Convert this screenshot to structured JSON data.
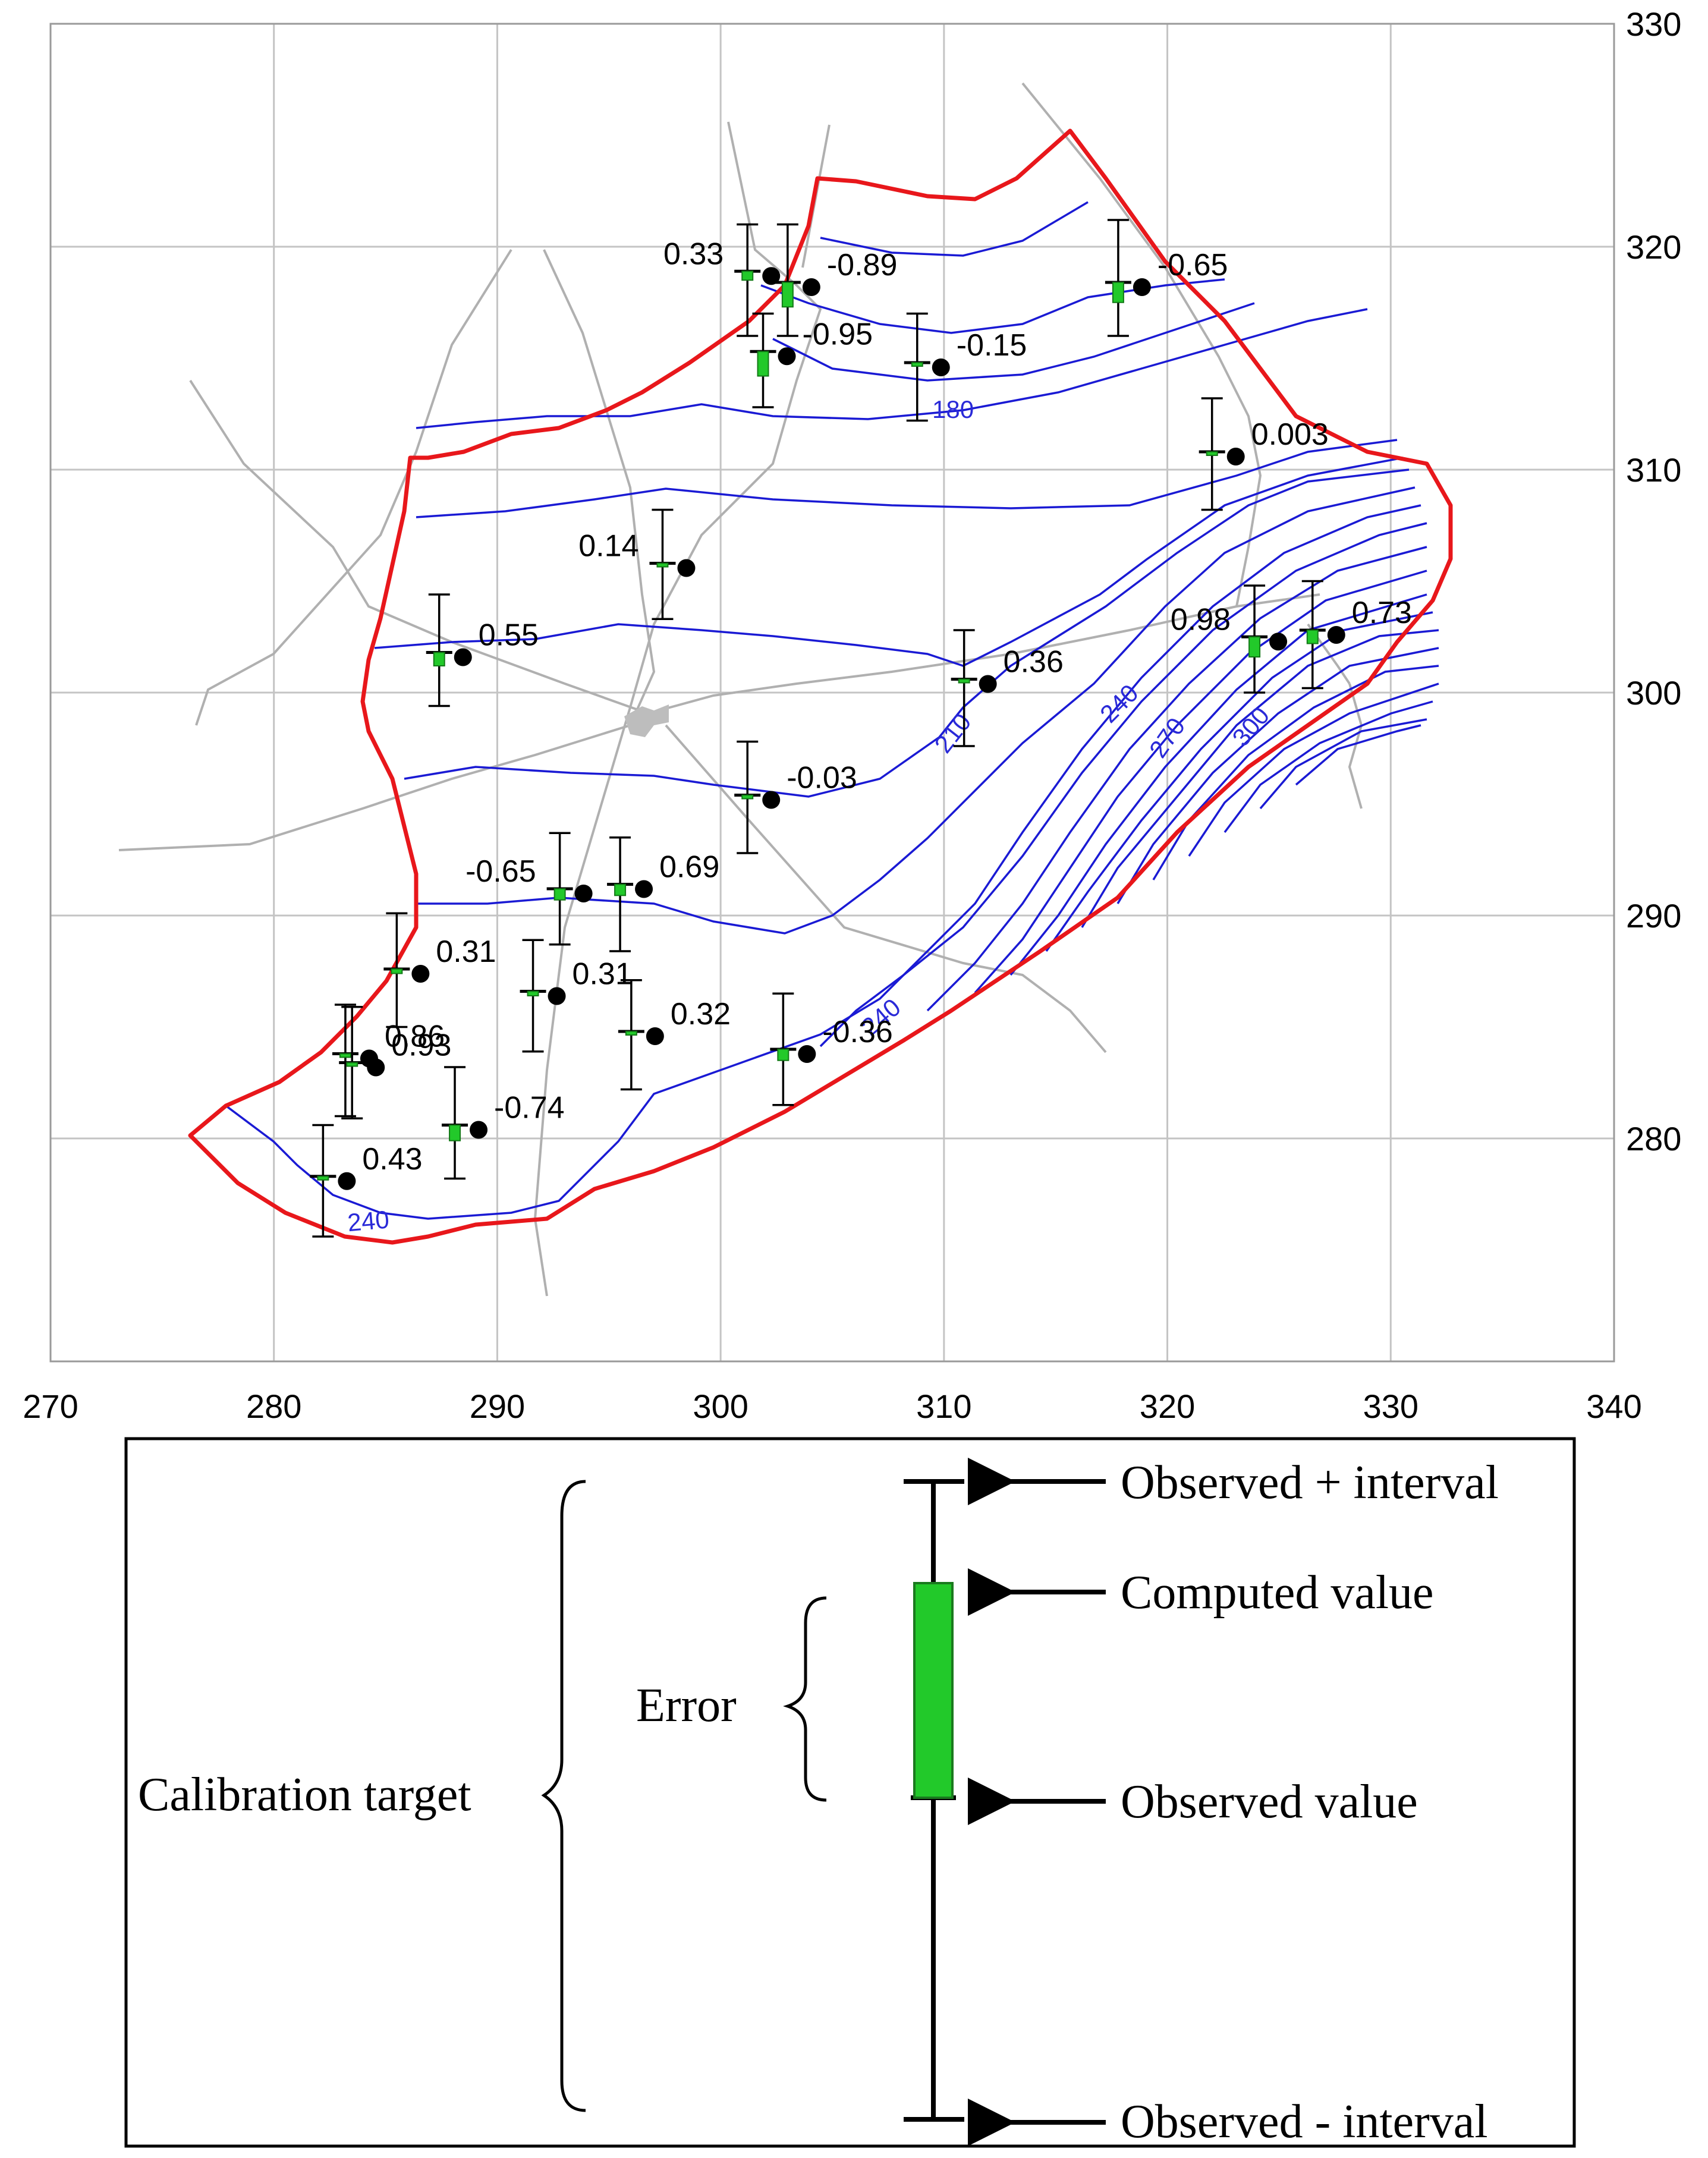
{
  "map": {
    "x_axis": {
      "ticks": [
        "270",
        "280",
        "290",
        "300",
        "310",
        "320",
        "330",
        "340"
      ]
    },
    "y_axis": {
      "ticks": [
        "280",
        "290",
        "300",
        "310",
        "320",
        "330"
      ]
    },
    "contour_labels": [
      "180",
      "210",
      "240",
      "270",
      "300",
      "240",
      "240"
    ],
    "targets": [
      {
        "x": 301.2,
        "y": 318.9,
        "top": 321.0,
        "bot": 316.0,
        "comp": 318.5,
        "label": "0.33",
        "lx": -1
      },
      {
        "x": 303.0,
        "y": 318.4,
        "top": 321.0,
        "bot": 316.0,
        "comp": 317.3,
        "label": "-0.89",
        "lx": 1
      },
      {
        "x": 301.9,
        "y": 315.3,
        "top": 317.0,
        "bot": 312.8,
        "comp": 314.2,
        "label": "-0.95",
        "lx": 1
      },
      {
        "x": 308.8,
        "y": 314.8,
        "top": 317.0,
        "bot": 312.2,
        "comp": 314.8,
        "label": "-0.15",
        "lx": 1
      },
      {
        "x": 317.8,
        "y": 318.4,
        "top": 321.2,
        "bot": 316.0,
        "comp": 317.5,
        "label": "-0.65",
        "lx": 1
      },
      {
        "x": 322.0,
        "y": 310.8,
        "top": 313.2,
        "bot": 308.2,
        "comp": 310.8,
        "label": "0.003",
        "lx": 1
      },
      {
        "x": 297.4,
        "y": 305.8,
        "top": 308.2,
        "bot": 303.3,
        "comp": 305.8,
        "label": "0.14",
        "lx": -1
      },
      {
        "x": 287.4,
        "y": 301.8,
        "top": 304.4,
        "bot": 299.4,
        "comp": 301.2,
        "label": "0.55",
        "lx": 1
      },
      {
        "x": 310.9,
        "y": 300.6,
        "top": 302.8,
        "bot": 297.6,
        "comp": 300.6,
        "label": "0.36",
        "lx": 1
      },
      {
        "x": 323.9,
        "y": 302.5,
        "top": 304.8,
        "bot": 300.0,
        "comp": 301.6,
        "label": "0.98",
        "lx": -1
      },
      {
        "x": 326.5,
        "y": 302.8,
        "top": 305.0,
        "bot": 300.2,
        "comp": 302.2,
        "label": "0.73",
        "lx": 1
      },
      {
        "x": 301.2,
        "y": 295.4,
        "top": 297.8,
        "bot": 292.8,
        "comp": 295.4,
        "label": "-0.03",
        "lx": 1
      },
      {
        "x": 292.8,
        "y": 291.2,
        "top": 293.7,
        "bot": 288.7,
        "comp": 290.7,
        "label": "-0.65",
        "lx": -1
      },
      {
        "x": 295.5,
        "y": 291.4,
        "top": 293.5,
        "bot": 288.4,
        "comp": 290.9,
        "label": "0.69",
        "lx": 1
      },
      {
        "x": 285.5,
        "y": 287.6,
        "top": 290.1,
        "bot": 285.0,
        "comp": 287.4,
        "label": "0.31",
        "lx": 1
      },
      {
        "x": 291.6,
        "y": 286.6,
        "top": 288.9,
        "bot": 283.9,
        "comp": 286.4,
        "label": "0.31",
        "lx": 1
      },
      {
        "x": 296.0,
        "y": 284.8,
        "top": 287.1,
        "bot": 282.2,
        "comp": 284.8,
        "label": "0.32",
        "lx": 1
      },
      {
        "x": 302.8,
        "y": 284.0,
        "top": 286.5,
        "bot": 281.5,
        "comp": 283.5,
        "label": "-0.36",
        "lx": 1
      },
      {
        "x": 283.2,
        "y": 283.8,
        "top": 286.0,
        "bot": 281.0,
        "comp": 283.8,
        "label": "0.86",
        "lx": 1
      },
      {
        "x": 283.5,
        "y": 283.4,
        "top": 285.9,
        "bot": 280.9,
        "comp": 283.4,
        "label": "0.93",
        "lx": 1
      },
      {
        "x": 288.1,
        "y": 280.6,
        "top": 283.2,
        "bot": 278.2,
        "comp": 279.9,
        "label": "-0.74",
        "lx": 1
      },
      {
        "x": 282.2,
        "y": 278.3,
        "top": 280.6,
        "bot": 275.6,
        "comp": 278.3,
        "label": "0.43",
        "lx": 1
      }
    ]
  },
  "legend": {
    "observed_plus": "Observed + interval",
    "computed": "Computed value",
    "error": "Error",
    "observed": "Observed value",
    "calibration_target": "Calibration target",
    "observed_minus": "Observed - interval"
  },
  "colors": {
    "boundary": "#e8171b",
    "contour": "#1a1ad4",
    "error_bar": "#22c92a",
    "grid": "#c4c4c4",
    "roads": "#b0b0b0"
  }
}
